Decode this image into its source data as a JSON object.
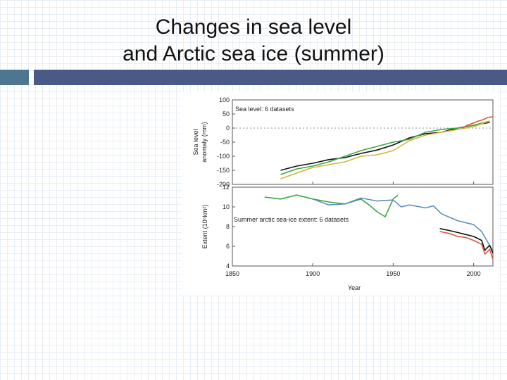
{
  "slide": {
    "title_line1": "Changes in sea level",
    "title_line2": "and Arctic sea ice (summer)",
    "colors": {
      "left_bar": "#4d7690",
      "right_bar": "#4a5a86"
    }
  },
  "chart_data": [
    {
      "type": "line",
      "panel_label": "Sea level: 6 datasets",
      "ylabel_line1": "Sea level",
      "ylabel_line2": "anomaly (mm)",
      "ylim": [
        -200,
        100
      ],
      "xlim": [
        1850,
        2012
      ],
      "yticks": [
        "100",
        "50",
        "0",
        "-50",
        "-100",
        "-150",
        "-200"
      ],
      "reference_line_y": 0,
      "series": [
        {
          "color": "#111111",
          "x": [
            1880,
            1890,
            1900,
            1910,
            1920,
            1930,
            1940,
            1950,
            1960,
            1970,
            1980,
            1990,
            2000,
            2010
          ],
          "values": [
            -150,
            -135,
            -125,
            -112,
            -105,
            -90,
            -78,
            -60,
            -35,
            -20,
            -15,
            0,
            10,
            20
          ]
        },
        {
          "color": "#3aa843",
          "x": [
            1880,
            1890,
            1900,
            1910,
            1920,
            1930,
            1940,
            1950,
            1960,
            1970,
            1980,
            1990,
            2000,
            2010
          ],
          "values": [
            -165,
            -145,
            -135,
            -120,
            -100,
            -80,
            -65,
            -50,
            -40,
            -15,
            -5,
            0,
            10,
            25
          ]
        },
        {
          "color": "#d4b43c",
          "x": [
            1880,
            1890,
            1900,
            1910,
            1920,
            1930,
            1940,
            1950,
            1960,
            1970,
            1980,
            1990,
            2000,
            2010
          ],
          "values": [
            -180,
            -160,
            -140,
            -130,
            -120,
            -100,
            -95,
            -80,
            -45,
            -25,
            -15,
            -5,
            5,
            25
          ]
        },
        {
          "color": "#e0543c",
          "x": [
            1993,
            1996,
            2000,
            2003,
            2006,
            2009,
            2012
          ],
          "values": [
            0,
            10,
            18,
            25,
            30,
            38,
            40
          ]
        }
      ]
    },
    {
      "type": "line",
      "panel_label": "Summer arctic sea-ice extent: 6 datasets",
      "ylabel": "Extent (10⁶km²)",
      "xlabel": "Year",
      "ylim": [
        4,
        12
      ],
      "xlim": [
        1850,
        2012
      ],
      "yticks": [
        "12",
        "10",
        "8",
        "6",
        "4"
      ],
      "xticks": [
        "1850",
        "1900",
        "1950",
        "2000"
      ],
      "series": [
        {
          "color": "#3aa843",
          "x": [
            1870,
            1880,
            1890,
            1900,
            1910,
            1920,
            1930,
            1935,
            1940,
            1945,
            1950,
            1953
          ],
          "values": [
            11.0,
            10.8,
            11.2,
            10.8,
            10.5,
            10.3,
            10.8,
            10.2,
            9.5,
            9.0,
            10.8,
            11.2
          ]
        },
        {
          "color": "#5b8fbf",
          "x": [
            1900,
            1910,
            1920,
            1930,
            1940,
            1950,
            1955,
            1960,
            1970,
            1975,
            1980,
            1990,
            2000,
            2005,
            2012
          ],
          "values": [
            10.8,
            10.2,
            10.3,
            10.9,
            10.6,
            10.7,
            10.0,
            10.2,
            9.9,
            10.1,
            9.3,
            8.6,
            8.2,
            7.5,
            5.5
          ]
        },
        {
          "color": "#111111",
          "x": [
            1979,
            1985,
            1990,
            1995,
            2000,
            2005,
            2007,
            2010,
            2012
          ],
          "values": [
            7.8,
            7.6,
            7.4,
            7.2,
            7.0,
            6.6,
            5.6,
            6.1,
            5.3
          ]
        },
        {
          "color": "#e0543c",
          "x": [
            1979,
            1985,
            1990,
            1995,
            2000,
            2005,
            2007,
            2010,
            2012
          ],
          "values": [
            7.5,
            7.3,
            7.0,
            6.9,
            6.6,
            6.2,
            5.2,
            5.7,
            4.7
          ]
        }
      ]
    }
  ]
}
